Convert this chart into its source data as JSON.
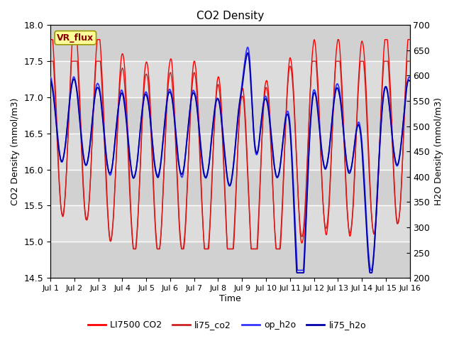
{
  "title": "CO2 Density",
  "xlabel": "Time",
  "ylabel_left": "CO2 Density (mmol/m3)",
  "ylabel_right": "H2O Density (mmol/m3)",
  "ylim_left": [
    14.5,
    18.0
  ],
  "ylim_right": [
    200,
    700
  ],
  "yticks_left": [
    14.5,
    15.0,
    15.5,
    16.0,
    16.5,
    17.0,
    17.5,
    18.0
  ],
  "yticks_right": [
    200,
    250,
    300,
    350,
    400,
    450,
    500,
    550,
    600,
    650,
    700
  ],
  "xtick_labels": [
    "Jul 1",
    "Jul 2",
    "Jul 3",
    "Jul 4",
    "Jul 5",
    "Jul 6",
    "Jul 7",
    "Jul 8",
    "Jul 9",
    "Jul 10",
    "Jul 11",
    "Jul 12",
    "Jul 13",
    "Jul 14",
    "Jul 15",
    "Jul 16"
  ],
  "annotation_text": "VR_flux",
  "annotation_color": "#8B0000",
  "annotation_bg": "#FFFF99",
  "annotation_border": "#999900",
  "background_color": "#DCDCDC",
  "grid_color": "white",
  "legend_colors_left": [
    "#FF0000",
    "#CC2222"
  ],
  "legend_colors_right": [
    "#4444EE",
    "#0000AA"
  ],
  "legend_items": [
    "LI7500 CO2",
    "li75_co2",
    "op_h2o",
    "li75_h2o"
  ]
}
